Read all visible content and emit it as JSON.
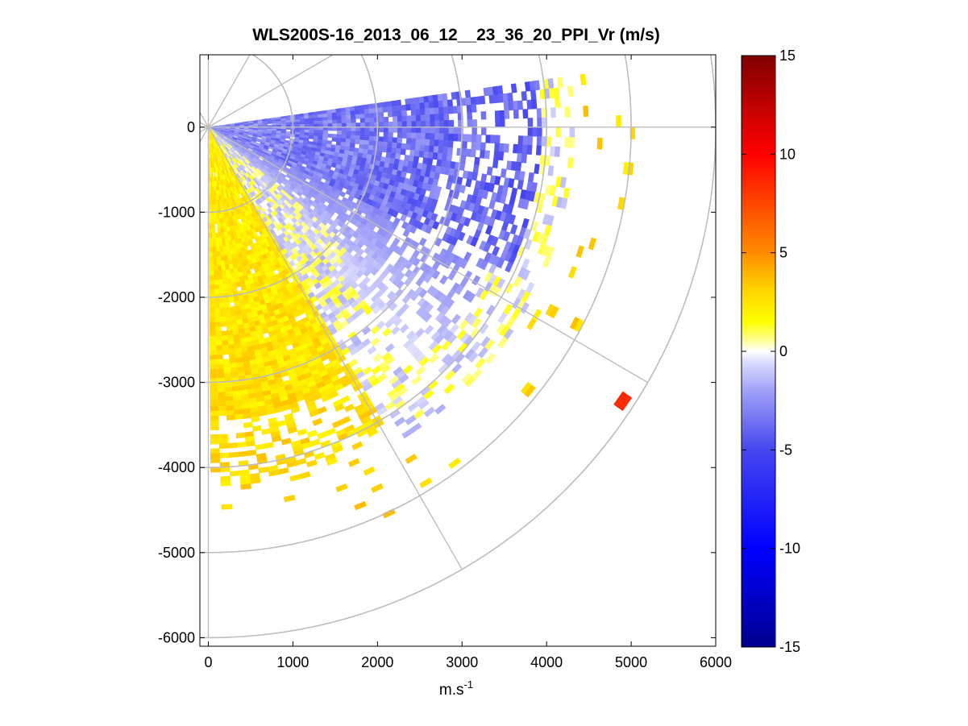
{
  "chart_data": {
    "type": "scatter",
    "title": "WLS200S-16_2013_06_12__23_36_20_PPI_Vr (m/s)",
    "xlabel": "m.s",
    "xlabel_sup": "-1",
    "ylabel": "",
    "xlim": [
      -100,
      6000
    ],
    "ylim": [
      -6100,
      850
    ],
    "x_ticks": [
      0,
      1000,
      2000,
      3000,
      4000,
      5000,
      6000
    ],
    "y_ticks": [
      0,
      -1000,
      -2000,
      -3000,
      -4000,
      -5000,
      -6000
    ],
    "grid": "polar",
    "polar_grid": {
      "range_rings": [
        1000,
        2000,
        3000,
        4000,
        5000,
        6000
      ],
      "spokes_deg": [
        0,
        30,
        60,
        90,
        120,
        150,
        180,
        210,
        240,
        270,
        300,
        330
      ]
    },
    "colorbar": {
      "label": "",
      "range": [
        -15,
        15
      ],
      "ticks": [
        15,
        10,
        5,
        0,
        -5,
        -10,
        -15
      ],
      "colors": {
        "min": "#00008f",
        "neg_mid": "#0000ff",
        "zero": "#ffffff",
        "pos_low": "#ffff00",
        "pos_mid": "#ff8000",
        "pos_high": "#ff0000",
        "max": "#800000"
      }
    },
    "sector": {
      "azimuth_from_deg": 8,
      "azimuth_to_deg": -88,
      "note_values": "radial velocity Vr (m/s) on polar range gates"
    },
    "features": [
      {
        "region": "north-east sector",
        "azimuth_deg": [
          -28,
          6
        ],
        "range_m": [
          300,
          3700
        ],
        "vr_mean": -2.5
      },
      {
        "region": "middle sector",
        "azimuth_deg": [
          -48,
          -22
        ],
        "range_m": [
          600,
          3600
        ],
        "vr_mean": -0.8
      },
      {
        "region": "south sector",
        "azimuth_deg": [
          -86,
          -46
        ],
        "range_m": [
          0,
          4300
        ],
        "vr_mean": 1.5
      },
      {
        "region": "isolated red gate",
        "x": 4900,
        "y": -3220,
        "vr": 8.5
      }
    ]
  }
}
